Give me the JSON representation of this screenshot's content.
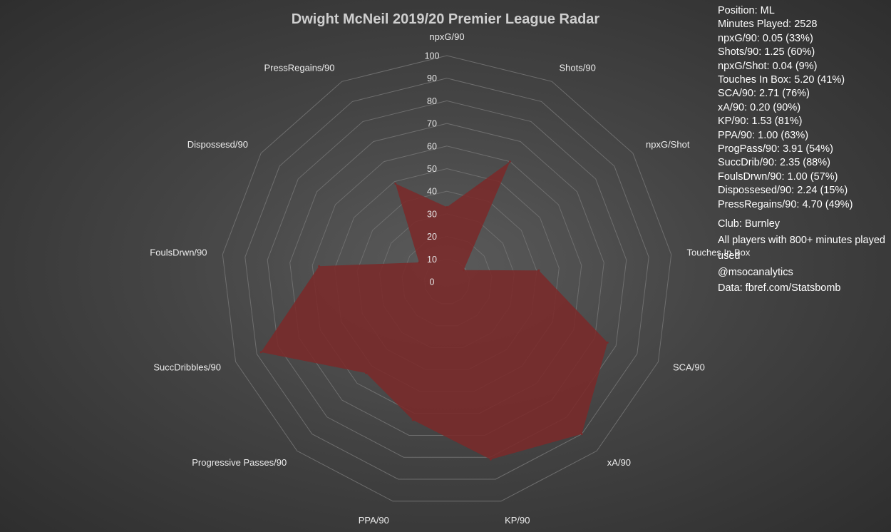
{
  "chart_data": {
    "type": "radar",
    "title": "Dwight McNeil 2019/20 Premier League Radar",
    "categories": [
      "npxG/90",
      "Shots/90",
      "npxG/Shot",
      "Touches In Box",
      "SCA/90",
      "xA/90",
      "KP/90",
      "PPA/90",
      "Progressive Passes/90",
      "SuccDribbles/90",
      "FoulsDrwn/90",
      "Dispossesd/90",
      "PressRegains/90"
    ],
    "values": [
      33,
      60,
      9,
      41,
      76,
      90,
      81,
      63,
      54,
      88,
      57,
      15,
      49
    ],
    "rlim": [
      0,
      100
    ],
    "ticks": [
      0,
      10,
      20,
      30,
      40,
      50,
      60,
      70,
      80,
      90,
      100
    ],
    "fill_color": "#7a2a2a",
    "grid_color": "#6e6e6e",
    "grid": true
  },
  "info_panel": {
    "stats": [
      "Position: ML",
      "Minutes Played: 2528",
      "npxG/90: 0.05 (33%)",
      "Shots/90: 1.25 (60%)",
      "npxG/Shot: 0.04 (9%)",
      "Touches In Box: 5.20 (41%)",
      "SCA/90: 2.71 (76%)",
      "xA/90: 0.20 (90%)",
      "KP/90: 1.53 (81%)",
      "PPA/90: 1.00 (63%)",
      "ProgPass/90: 3.91 (54%)",
      "SuccDrib/90: 2.35 (88%)",
      "FoulsDrwn/90: 1.00 (57%)",
      "Dispossesed/90: 2.24 (15%)",
      "PressRegains/90: 4.70 (49%)"
    ],
    "notes": [
      "Club: Burnley",
      "All players with 800+ minutes played used",
      "@msocanalytics",
      "Data: fbref.com/Statsbomb"
    ]
  }
}
